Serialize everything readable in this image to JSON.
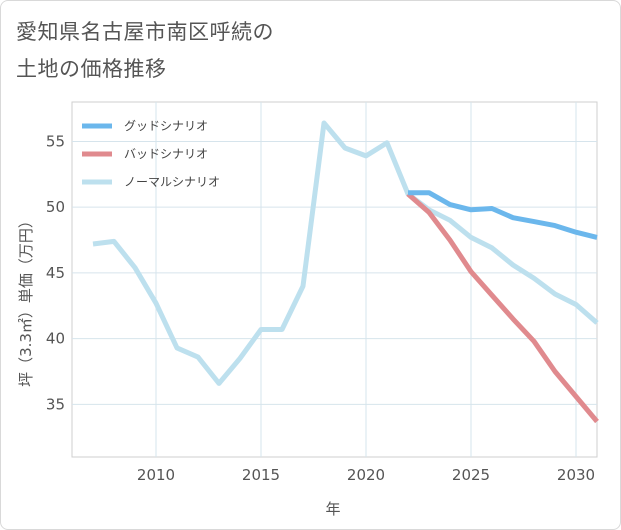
{
  "title_lines": [
    "愛知県名古屋市南区呼続の",
    "土地の価格推移"
  ],
  "chart_data": {
    "type": "line",
    "title": "愛知県名古屋市南区呼続の土地の価格推移",
    "xlabel": "年",
    "ylabel": "坪（3.3㎡）単価（万円）",
    "xlim": [
      2006,
      2031
    ],
    "ylim": [
      31,
      58
    ],
    "x_ticks": [
      2010,
      2015,
      2020,
      2025,
      2030
    ],
    "y_ticks": [
      35,
      40,
      45,
      50,
      55
    ],
    "grid": true,
    "legend_position": "top-left",
    "series": [
      {
        "name": "グッドシナリオ",
        "color": "#6bb7ec",
        "points": [
          [
            2022,
            51.1
          ],
          [
            2023,
            51.1
          ],
          [
            2024,
            50.2
          ],
          [
            2025,
            49.8
          ],
          [
            2026,
            49.9
          ],
          [
            2027,
            49.2
          ],
          [
            2028,
            48.9
          ],
          [
            2029,
            48.6
          ],
          [
            2030,
            48.1
          ],
          [
            2031,
            47.7
          ]
        ]
      },
      {
        "name": "バッドシナリオ",
        "color": "#e08a8e",
        "points": [
          [
            2022,
            51.0
          ],
          [
            2023,
            49.6
          ],
          [
            2024,
            47.5
          ],
          [
            2025,
            45.1
          ],
          [
            2026,
            43.3
          ],
          [
            2027,
            41.5
          ],
          [
            2028,
            39.8
          ],
          [
            2029,
            37.5
          ],
          [
            2030,
            35.6
          ],
          [
            2031,
            33.7
          ]
        ]
      },
      {
        "name": "ノーマルシナリオ",
        "color": "#bde0ee",
        "points": [
          [
            2007,
            47.2
          ],
          [
            2008,
            47.4
          ],
          [
            2009,
            45.4
          ],
          [
            2010,
            42.7
          ],
          [
            2011,
            39.3
          ],
          [
            2012,
            38.6
          ],
          [
            2013,
            36.6
          ],
          [
            2014,
            38.5
          ],
          [
            2015,
            40.7
          ],
          [
            2016,
            40.7
          ],
          [
            2017,
            44.0
          ],
          [
            2018,
            56.4
          ],
          [
            2019,
            54.5
          ],
          [
            2020,
            53.9
          ],
          [
            2021,
            54.9
          ],
          [
            2022,
            51.0
          ],
          [
            2023,
            49.8
          ],
          [
            2024,
            49.0
          ],
          [
            2025,
            47.7
          ],
          [
            2026,
            46.9
          ],
          [
            2027,
            45.6
          ],
          [
            2028,
            44.6
          ],
          [
            2029,
            43.4
          ],
          [
            2030,
            42.6
          ],
          [
            2031,
            41.2
          ]
        ]
      }
    ]
  }
}
